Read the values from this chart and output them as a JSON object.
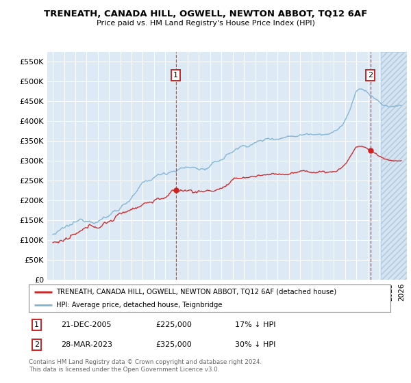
{
  "title": "TRENEATH, CANADA HILL, OGWELL, NEWTON ABBOT, TQ12 6AF",
  "subtitle": "Price paid vs. HM Land Registry's House Price Index (HPI)",
  "ylim": [
    0,
    575000
  ],
  "yticks": [
    0,
    50000,
    100000,
    150000,
    200000,
    250000,
    300000,
    350000,
    400000,
    450000,
    500000,
    550000
  ],
  "hpi_color": "#7fb3d3",
  "price_color": "#cc2222",
  "marker1_t": 2005.97,
  "marker1_price": 225000,
  "marker1_label": "1",
  "marker1_date_str": "21-DEC-2005",
  "marker1_pct": "17% ↓ HPI",
  "marker2_t": 2023.23,
  "marker2_price": 325000,
  "marker2_label": "2",
  "marker2_date_str": "28-MAR-2023",
  "marker2_pct": "30% ↓ HPI",
  "legend_label1": "TRENEATH, CANADA HILL, OGWELL, NEWTON ABBOT, TQ12 6AF (detached house)",
  "legend_label2": "HPI: Average price, detached house, Teignbridge",
  "footnote": "Contains HM Land Registry data © Crown copyright and database right 2024.\nThis data is licensed under the Open Government Licence v3.0.",
  "bg_color": "#ddeaf5",
  "hatch_color": "#c8d8e8",
  "grid_color": "#ffffff"
}
